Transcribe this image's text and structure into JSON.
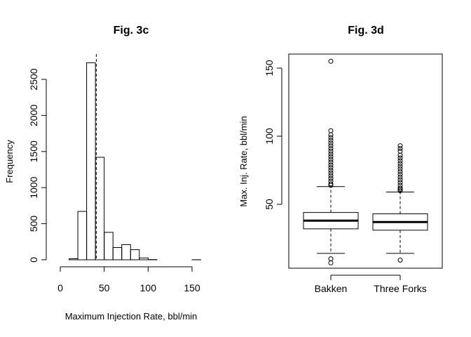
{
  "chart_data": [
    {
      "type": "bar",
      "subtype": "histogram",
      "title": "Fig. 3c",
      "xlabel": "Maximum Injection Rate, bbl/min",
      "ylabel": "Frequency",
      "xlim": [
        0,
        160
      ],
      "ylim": [
        0,
        2750
      ],
      "xticks": [
        "0",
        "50",
        "100",
        "150"
      ],
      "yticks": [
        "0",
        "500",
        "1000",
        "1500",
        "2000",
        "2500"
      ],
      "bin_width": 10,
      "bins": [
        {
          "x0": 10,
          "x1": 20,
          "count": 15
        },
        {
          "x0": 20,
          "x1": 30,
          "count": 670
        },
        {
          "x0": 30,
          "x1": 40,
          "count": 2730
        },
        {
          "x0": 40,
          "x1": 50,
          "count": 1420
        },
        {
          "x0": 50,
          "x1": 60,
          "count": 380
        },
        {
          "x0": 60,
          "x1": 70,
          "count": 170
        },
        {
          "x0": 70,
          "x1": 80,
          "count": 210
        },
        {
          "x0": 80,
          "x1": 90,
          "count": 140
        },
        {
          "x0": 90,
          "x1": 100,
          "count": 25
        },
        {
          "x0": 100,
          "x1": 110,
          "count": 3
        },
        {
          "x0": 150,
          "x1": 160,
          "count": 1
        }
      ],
      "reference_line": {
        "x": 41,
        "style": "dashed"
      },
      "grid": false
    },
    {
      "type": "box",
      "title": "Fig. 3d",
      "xlabel": "",
      "ylabel": "Max. Inj. Rate, bbl/min",
      "ylim": [
        5,
        160
      ],
      "yticks": [
        "50",
        "100",
        "150"
      ],
      "categories": [
        "Bakken",
        "Three Forks"
      ],
      "boxes": [
        {
          "name": "Bakken",
          "q1": 32,
          "median": 38,
          "q3": 44,
          "whisker_low": 14,
          "whisker_high": 63,
          "outliers": [
            155,
            104,
            101,
            99,
            97,
            95,
            93,
            91,
            89,
            87,
            85,
            83,
            81,
            79,
            77,
            75,
            73,
            71,
            69,
            67,
            65,
            64,
            10,
            7
          ]
        },
        {
          "name": "Three Forks",
          "q1": 31,
          "median": 37,
          "q3": 43,
          "whisker_low": 14,
          "whisker_high": 59,
          "outliers": [
            93,
            91,
            89,
            86,
            84,
            82,
            80,
            78,
            76,
            74,
            72,
            70,
            68,
            66,
            64,
            62,
            61,
            60,
            9
          ]
        }
      ],
      "grid": false
    }
  ]
}
